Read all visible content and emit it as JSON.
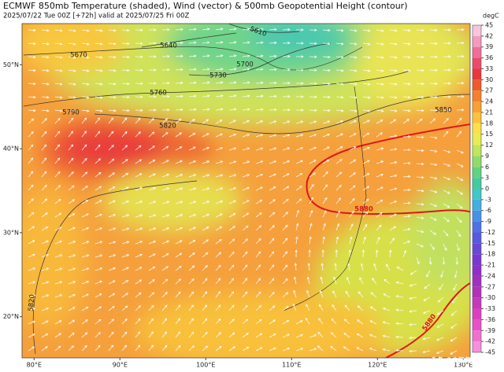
{
  "header": {
    "title": "ECMWF 850mb Temperature (shaded), Wind (vector) & 500mb Geopotential Height (contour)",
    "subtitle": "2025/07/22 Tue 00Z [+72h] valid at 2025/07/25 Fri 00Z"
  },
  "map": {
    "xlim": [
      78.6,
      130.8
    ],
    "ylim": [
      15.1,
      54.9
    ],
    "xticks": [
      {
        "value": 80,
        "label": "80°E"
      },
      {
        "value": 90,
        "label": "90°E"
      },
      {
        "value": 100,
        "label": "100°E"
      },
      {
        "value": 110,
        "label": "110°E"
      },
      {
        "value": 120,
        "label": "120°E"
      },
      {
        "value": 130,
        "label": "130°E"
      }
    ],
    "yticks": [
      {
        "value": 50,
        "label": "50°N"
      },
      {
        "value": 40,
        "label": "40°N"
      },
      {
        "value": 30,
        "label": "30°N"
      },
      {
        "value": 20,
        "label": "20°N"
      }
    ],
    "contour_labels": [
      5610,
      5640,
      5670,
      5700,
      5730,
      5760,
      5790,
      5820,
      5850,
      5880,
      5820,
      5880
    ]
  },
  "colorbar": {
    "unit": "degC",
    "lim": [
      -45,
      45
    ],
    "ticks": [
      45,
      42,
      39,
      36,
      33,
      30,
      27,
      24,
      21,
      18,
      15,
      12,
      9,
      6,
      3,
      0,
      -3,
      -6,
      -9,
      -12,
      -15,
      -18,
      -21,
      -24,
      -27,
      -30,
      -33,
      -36,
      -39,
      -42,
      -45
    ],
    "colors": [
      "#f7c6dc",
      "#f49ac0",
      "#f06d9a",
      "#ec4a6a",
      "#e8383a",
      "#ee5a2a",
      "#f4802c",
      "#f8a032",
      "#fcc23a",
      "#fde048",
      "#e8ec50",
      "#c0e65a",
      "#90dc6a",
      "#60d480",
      "#40cca0",
      "#40c8c8",
      "#40b0e0",
      "#4890e8",
      "#5070e8",
      "#5a58e0",
      "#6848d8",
      "#7838d0",
      "#8c30c8",
      "#a030c0",
      "#b430b8",
      "#c838b8",
      "#dc40c0",
      "#e850c8",
      "#f070d0",
      "#f490dc"
    ]
  },
  "watermark": "头条 @中国气象爱好者"
}
